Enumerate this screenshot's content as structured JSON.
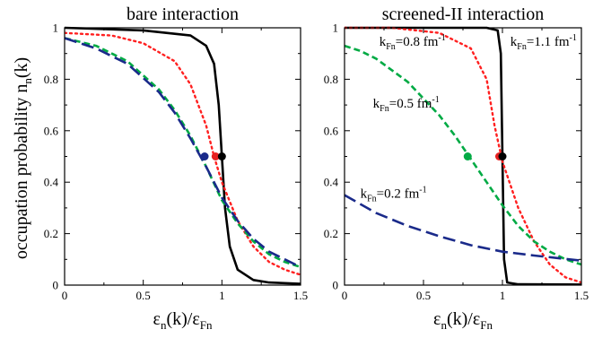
{
  "chart_data": [
    {
      "type": "line",
      "title": "bare interaction",
      "xlabel_main": "ε",
      "xlabel_sub1": "n",
      "xlabel_mid": "(k)/ε",
      "xlabel_sub2": "Fn",
      "ylabel_main": "occupation probability   n",
      "ylabel_sub": "n",
      "ylabel_tail": "(k)",
      "xlim": [
        0,
        1.5
      ],
      "ylim": [
        0,
        1
      ],
      "xticks": [
        0,
        0.5,
        1,
        1.5
      ],
      "xtick_labels": [
        "0",
        "0.5",
        "1",
        "1.5"
      ],
      "yticks": [
        0,
        0.2,
        0.4,
        0.6,
        0.8,
        1
      ],
      "ytick_labels": [
        "0",
        "0.2",
        "0.4",
        "0.6",
        "0.8",
        "1"
      ],
      "series": [
        {
          "color": "#000000",
          "style": "solid",
          "x": [
            0,
            0.5,
            0.8,
            0.9,
            0.95,
            0.98,
            1.0,
            1.02,
            1.05,
            1.1,
            1.2,
            1.3,
            1.5
          ],
          "y": [
            1.0,
            0.99,
            0.97,
            0.93,
            0.86,
            0.7,
            0.5,
            0.3,
            0.15,
            0.06,
            0.02,
            0.01,
            0.005
          ]
        },
        {
          "color": "#ff2020",
          "style": "dotted",
          "x": [
            0,
            0.3,
            0.5,
            0.7,
            0.8,
            0.9,
            0.95,
            1.0,
            1.1,
            1.2,
            1.3,
            1.4,
            1.5
          ],
          "y": [
            0.98,
            0.97,
            0.94,
            0.87,
            0.78,
            0.62,
            0.5,
            0.4,
            0.25,
            0.15,
            0.09,
            0.06,
            0.04
          ]
        },
        {
          "color": "#00aa44",
          "style": "dashed",
          "x": [
            0,
            0.2,
            0.4,
            0.6,
            0.7,
            0.8,
            0.9,
            1.0,
            1.1,
            1.2,
            1.3,
            1.4,
            1.5
          ],
          "y": [
            0.96,
            0.93,
            0.87,
            0.76,
            0.68,
            0.58,
            0.46,
            0.33,
            0.24,
            0.17,
            0.12,
            0.09,
            0.07
          ]
        },
        {
          "color": "#1a2a8a",
          "style": "longdash",
          "x": [
            0,
            0.2,
            0.4,
            0.6,
            0.7,
            0.8,
            0.9,
            1.0,
            1.1,
            1.2,
            1.3,
            1.4,
            1.5
          ],
          "y": [
            0.96,
            0.92,
            0.86,
            0.75,
            0.67,
            0.57,
            0.46,
            0.34,
            0.25,
            0.18,
            0.13,
            0.1,
            0.07
          ]
        }
      ],
      "points": [
        {
          "color": "#1a2a8a",
          "x": 0.89,
          "y": 0.5
        },
        {
          "color": "#e62020",
          "x": 0.96,
          "y": 0.5
        },
        {
          "color": "#000000",
          "x": 1.0,
          "y": 0.5
        }
      ],
      "annotations": []
    },
    {
      "type": "line",
      "title": "screened-II interaction",
      "xlabel_main": "ε",
      "xlabel_sub1": "n",
      "xlabel_mid": "(k)/ε",
      "xlabel_sub2": "Fn",
      "xlim": [
        0,
        1.5
      ],
      "ylim": [
        0,
        1
      ],
      "xticks": [
        0,
        0.5,
        1,
        1.5
      ],
      "xtick_labels": [
        "0",
        "0.5",
        "1",
        "1.5"
      ],
      "yticks": [
        0,
        0.2,
        0.4,
        0.6,
        0.8,
        1
      ],
      "ytick_labels": [
        "0",
        "0.2",
        "0.4",
        "0.6",
        "0.8",
        "1"
      ],
      "series": [
        {
          "color": "#000000",
          "style": "solid",
          "x": [
            0,
            0.5,
            0.9,
            0.97,
            0.99,
            1.0,
            1.01,
            1.03,
            1.1,
            1.5
          ],
          "y": [
            1.0,
            1.0,
            1.0,
            0.99,
            0.9,
            0.5,
            0.1,
            0.01,
            0.003,
            0.002
          ]
        },
        {
          "color": "#ff2020",
          "style": "dotted",
          "x": [
            0,
            0.3,
            0.6,
            0.8,
            0.9,
            0.95,
            1.0,
            1.1,
            1.2,
            1.3,
            1.4,
            1.5
          ],
          "y": [
            1.0,
            1.0,
            0.98,
            0.92,
            0.8,
            0.62,
            0.48,
            0.3,
            0.17,
            0.08,
            0.03,
            0.01
          ]
        },
        {
          "color": "#00aa44",
          "style": "dashed",
          "x": [
            0,
            0.1,
            0.2,
            0.4,
            0.6,
            0.7,
            0.8,
            0.9,
            1.0,
            1.1,
            1.2,
            1.3,
            1.4,
            1.5
          ],
          "y": [
            0.93,
            0.91,
            0.88,
            0.79,
            0.66,
            0.58,
            0.49,
            0.4,
            0.31,
            0.23,
            0.17,
            0.13,
            0.1,
            0.08
          ]
        },
        {
          "color": "#1a2a8a",
          "style": "longdash",
          "x": [
            0,
            0.2,
            0.4,
            0.6,
            0.8,
            1.0,
            1.2,
            1.5
          ],
          "y": [
            0.35,
            0.28,
            0.23,
            0.19,
            0.155,
            0.13,
            0.115,
            0.095
          ]
        }
      ],
      "points": [
        {
          "color": "#00aa44",
          "x": 0.78,
          "y": 0.5
        },
        {
          "color": "#e62020",
          "x": 0.98,
          "y": 0.5
        },
        {
          "color": "#000000",
          "x": 1.0,
          "y": 0.5
        }
      ],
      "annotations": [
        {
          "main": "k",
          "sub": "Fn",
          "rest": "=0.8 fm",
          "sup": "-1",
          "x": 0.22,
          "y": 0.93
        },
        {
          "main": "k",
          "sub": "Fn",
          "rest": "=1.1 fm",
          "sup": "-1",
          "x": 1.05,
          "y": 0.93
        },
        {
          "main": "k",
          "sub": "Fn",
          "rest": "=0.5 fm",
          "sup": "-1",
          "x": 0.18,
          "y": 0.69
        },
        {
          "main": "k",
          "sub": "Fn",
          "rest": "=0.2 fm",
          "sup": "-1",
          "x": 0.1,
          "y": 0.34
        }
      ]
    }
  ]
}
